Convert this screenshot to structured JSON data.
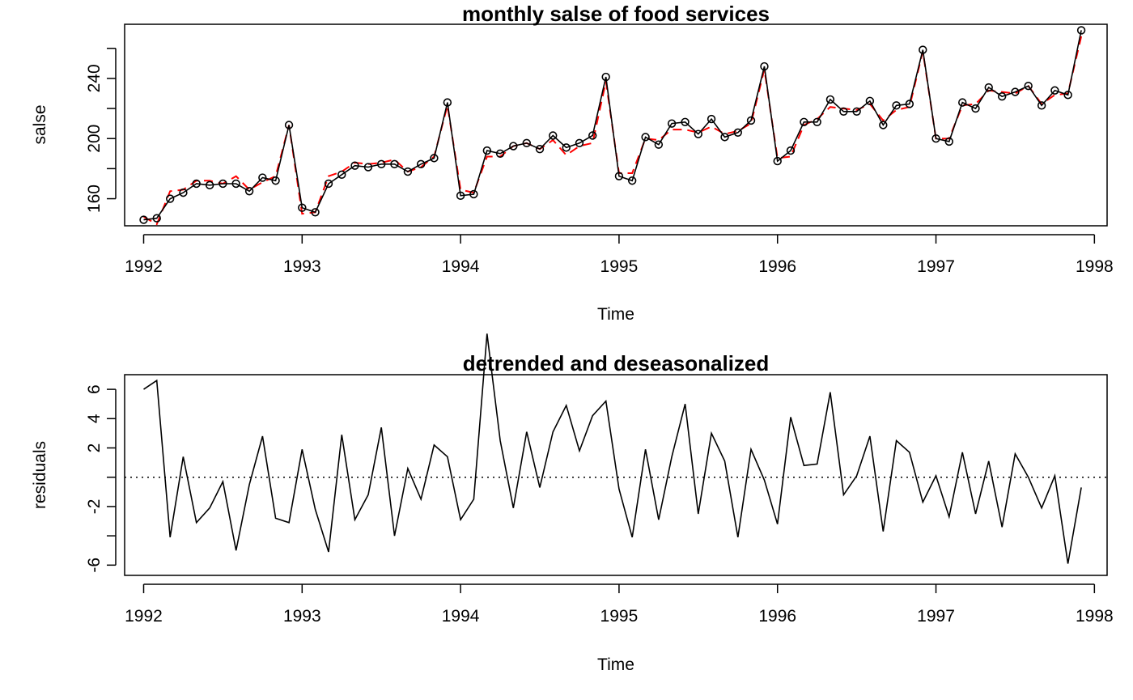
{
  "chart_data": [
    {
      "type": "line",
      "title": "monthly salse of food services",
      "xlabel": "Time",
      "ylabel": "salse",
      "xlim": [
        1991.88,
        1998.08
      ],
      "ylim": [
        142,
        276
      ],
      "xticks": [
        "1992",
        "1993",
        "1994",
        "1995",
        "1996",
        "1997",
        "1998"
      ],
      "xtick_values": [
        1992,
        1993,
        1994,
        1995,
        1996,
        1997,
        1998
      ],
      "yticks": [
        "160",
        "200",
        "240"
      ],
      "ytick_values": [
        160,
        200,
        240
      ],
      "minor_ytick_values": [
        180,
        220,
        260
      ],
      "x": [
        1992.0,
        1992.083,
        1992.167,
        1992.25,
        1992.333,
        1992.417,
        1992.5,
        1992.583,
        1992.667,
        1992.75,
        1992.833,
        1992.917,
        1993.0,
        1993.083,
        1993.167,
        1993.25,
        1993.333,
        1993.417,
        1993.5,
        1993.583,
        1993.667,
        1993.75,
        1993.833,
        1993.917,
        1994.0,
        1994.083,
        1994.167,
        1994.25,
        1994.333,
        1994.417,
        1994.5,
        1994.583,
        1994.667,
        1994.75,
        1994.833,
        1994.917,
        1995.0,
        1995.083,
        1995.167,
        1995.25,
        1995.333,
        1995.417,
        1995.5,
        1995.583,
        1995.667,
        1995.75,
        1995.833,
        1995.917,
        1996.0,
        1996.083,
        1996.167,
        1996.25,
        1996.333,
        1996.417,
        1996.5,
        1996.583,
        1996.667,
        1996.75,
        1996.833,
        1996.917,
        1997.0,
        1997.083,
        1997.167,
        1997.25,
        1997.333,
        1997.417,
        1997.5,
        1997.583,
        1997.667,
        1997.75,
        1997.833,
        1997.917
      ],
      "series": [
        {
          "style": "black line with open circles",
          "color": "#000000",
          "values": [
            146,
            147,
            160,
            164,
            170,
            169,
            170,
            170,
            165,
            174,
            172,
            209,
            154,
            151,
            170,
            176,
            182,
            181,
            183,
            183,
            178,
            183,
            187,
            224,
            162,
            163,
            192,
            190,
            195,
            197,
            193,
            202,
            194,
            197,
            202,
            241,
            175,
            172,
            201,
            196,
            210,
            211,
            203,
            213,
            201,
            204,
            212,
            248,
            185,
            192,
            211,
            211,
            226,
            218,
            218,
            225,
            209,
            222,
            223,
            259,
            200,
            198,
            224,
            220,
            234,
            228,
            231,
            235,
            222,
            232,
            229,
            272
          ]
        },
        {
          "style": "red dashed line",
          "color": "#ff0000",
          "values": [
            148,
            143,
            165,
            166,
            172,
            172,
            170,
            175,
            166,
            171,
            175,
            209,
            150,
            151,
            175,
            178,
            184,
            183,
            184,
            186,
            178,
            181,
            188,
            222,
            166,
            164,
            188,
            188,
            195,
            197,
            193,
            199,
            189,
            195,
            197,
            238,
            177,
            177,
            200,
            199,
            206,
            206,
            204,
            208,
            203,
            205,
            210,
            246,
            187,
            188,
            209,
            213,
            221,
            220,
            219,
            223,
            212,
            219,
            221,
            258,
            200,
            200,
            222,
            223,
            232,
            231,
            230,
            235,
            223,
            229,
            230,
            268
          ]
        }
      ]
    },
    {
      "type": "line",
      "title": "detrended and deseasonalized",
      "xlabel": "Time",
      "ylabel": "residuals",
      "xlim": [
        1991.88,
        1998.08
      ],
      "ylim": [
        -6.7,
        7.0
      ],
      "xticks": [
        "1992",
        "1993",
        "1994",
        "1995",
        "1996",
        "1997",
        "1998"
      ],
      "xtick_values": [
        1992,
        1993,
        1994,
        1995,
        1996,
        1997,
        1998
      ],
      "yticks": [
        "-6",
        "-2",
        "2",
        "4",
        "6"
      ],
      "ytick_values": [
        -6,
        -2,
        2,
        4,
        6
      ],
      "minor_ytick_values": [
        -4,
        0
      ],
      "reference_line": {
        "y": 0,
        "style": "dotted"
      },
      "x": [
        1992.0,
        1992.083,
        1992.167,
        1992.25,
        1992.333,
        1992.417,
        1992.5,
        1992.583,
        1992.667,
        1992.75,
        1992.833,
        1992.917,
        1993.0,
        1993.083,
        1993.167,
        1993.25,
        1993.333,
        1993.417,
        1993.5,
        1993.583,
        1993.667,
        1993.75,
        1993.833,
        1993.917,
        1994.0,
        1994.083,
        1994.167,
        1994.25,
        1994.333,
        1994.417,
        1994.5,
        1994.583,
        1994.667,
        1994.75,
        1994.833,
        1994.917,
        1995.0,
        1995.083,
        1995.167,
        1995.25,
        1995.333,
        1995.417,
        1995.5,
        1995.583,
        1995.667,
        1995.75,
        1995.833,
        1995.917,
        1996.0,
        1996.083,
        1996.167,
        1996.25,
        1996.333,
        1996.417,
        1996.5,
        1996.583,
        1996.667,
        1996.75,
        1996.833,
        1996.917,
        1997.0,
        1997.083,
        1997.167,
        1997.25,
        1997.333,
        1997.417,
        1997.5,
        1997.583,
        1997.667,
        1997.75,
        1997.833,
        1997.917
      ],
      "series": [
        {
          "style": "black line",
          "color": "#000000",
          "values": [
            6.0,
            6.6,
            -4.1,
            1.4,
            -3.1,
            -2.1,
            -0.3,
            -5.0,
            -0.5,
            2.8,
            -2.8,
            -3.1,
            1.9,
            -2.2,
            -5.1,
            2.9,
            -2.9,
            -1.2,
            3.4,
            -4.0,
            0.6,
            -1.5,
            2.2,
            1.4,
            -2.9,
            -1.5,
            9.8,
            2.5,
            -2.1,
            3.1,
            -0.7,
            3.1,
            4.9,
            1.8,
            4.2,
            5.2,
            -0.8,
            -4.1,
            1.9,
            -2.9,
            1.4,
            5.0,
            -2.5,
            3.0,
            1.1,
            -4.1,
            1.9,
            -0.2,
            -3.2,
            4.1,
            0.8,
            0.9,
            5.8,
            -1.2,
            0.1,
            2.8,
            -3.7,
            2.5,
            1.7,
            -1.7,
            0.1,
            -2.7,
            1.7,
            -2.5,
            1.1,
            -3.4,
            1.6,
            0.0,
            -2.1,
            0.1,
            -5.9,
            -0.7
          ]
        }
      ]
    }
  ]
}
